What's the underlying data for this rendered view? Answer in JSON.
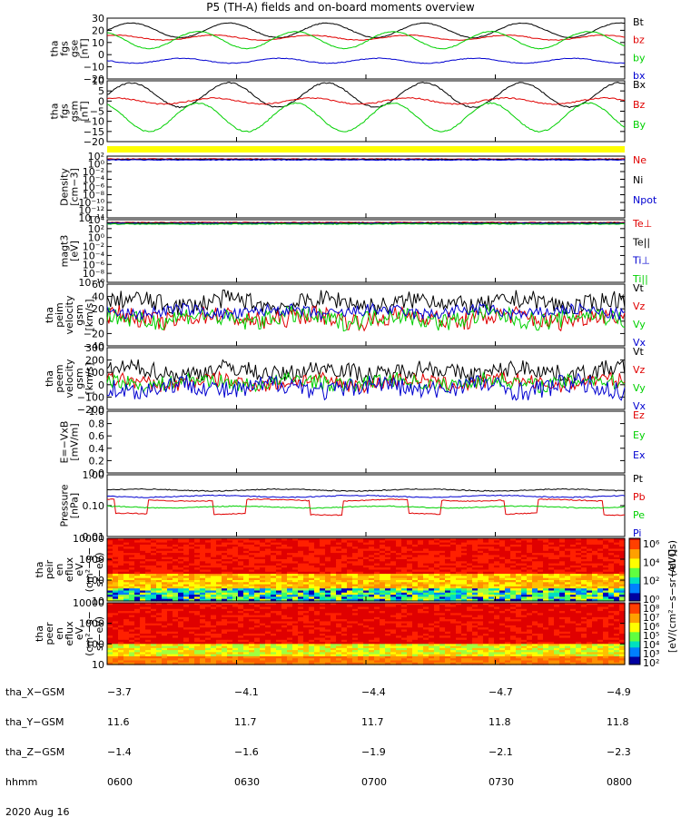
{
  "title": "P5 (TH-A) fields and on-board moments overview",
  "colors": {
    "black": "#000000",
    "red": "#e00000",
    "green": "#00d000",
    "blue": "#0000d0",
    "yellow": "#ffff00"
  },
  "chart_data": [
    {
      "type": "line",
      "panel": "fgs_gse",
      "ylabel": [
        "tha",
        "fgs",
        "gse",
        "[nT]"
      ],
      "ylim": [
        -20,
        30
      ],
      "ticks": [
        "30",
        "20",
        "10",
        "0",
        "−10",
        "−20"
      ],
      "series": [
        {
          "name": "Bt",
          "color": "black",
          "baseline": 20,
          "amp": 6
        },
        {
          "name": "bz",
          "color": "red",
          "baseline": 14,
          "amp": 2
        },
        {
          "name": "by",
          "color": "green",
          "baseline": 12,
          "amp": 7
        },
        {
          "name": "bx",
          "color": "blue",
          "baseline": -5,
          "amp": 2
        }
      ]
    },
    {
      "type": "line",
      "panel": "fgs_gsm",
      "ylabel": [
        "tha",
        "fgs",
        "gsm",
        "[nT]"
      ],
      "ylim": [
        -20,
        10
      ],
      "ticks": [
        "10",
        "5",
        "0",
        "−5",
        "−10",
        "−15",
        "−20"
      ],
      "series": [
        {
          "name": "Bx",
          "color": "black",
          "baseline": 3,
          "amp": 6
        },
        {
          "name": "Bz",
          "color": "red",
          "baseline": 0,
          "amp": 1.5
        },
        {
          "name": "By",
          "color": "green",
          "baseline": -8,
          "amp": 7
        }
      ]
    },
    {
      "type": "line",
      "panel": "density",
      "ylabel": [
        "Density",
        "[cm−3]"
      ],
      "ticks": [
        "10²",
        "10⁰",
        "10⁻²",
        "10⁻⁴",
        "10⁻⁶",
        "10⁻⁸",
        "10⁻¹⁰",
        "10⁻¹²",
        "10⁻¹⁴"
      ],
      "series": [
        {
          "name": "Ne",
          "color": "red"
        },
        {
          "name": "Ni",
          "color": "black"
        },
        {
          "name": "Npot",
          "color": "blue"
        }
      ]
    },
    {
      "type": "line",
      "panel": "temperature",
      "ylabel": [
        "magt3",
        "[eV]"
      ],
      "ticks": [
        "10⁴",
        "10²",
        "10⁰",
        "10⁻²",
        "10⁻⁴",
        "10⁻⁶",
        "10⁻⁸",
        "10⁻¹⁰"
      ],
      "series": [
        {
          "name": "Te⊥",
          "color": "red"
        },
        {
          "name": "Te||",
          "color": "black"
        },
        {
          "name": "Ti⊥",
          "color": "blue"
        },
        {
          "name": "Ti||",
          "color": "green"
        }
      ]
    },
    {
      "type": "line",
      "panel": "peim_velocity",
      "ylabel": [
        "tha",
        "peim",
        "velocity",
        "gsm",
        "[km/s]"
      ],
      "ylim": [
        -40,
        60
      ],
      "ticks": [
        "60",
        "40",
        "20",
        "0",
        "−20",
        "−40"
      ],
      "series": [
        {
          "name": "Vt",
          "color": "black",
          "baseline": 30,
          "amp": 15
        },
        {
          "name": "Vz",
          "color": "red",
          "baseline": 5,
          "amp": 15
        },
        {
          "name": "Vy",
          "color": "green",
          "baseline": 5,
          "amp": 15
        },
        {
          "name": "Vx",
          "color": "blue",
          "baseline": 15,
          "amp": 10
        }
      ]
    },
    {
      "type": "line",
      "panel": "peem_velocity",
      "ylabel": [
        "tha",
        "peem",
        "velocity",
        "gsm",
        "[km/s]"
      ],
      "ylim": [
        -200,
        300
      ],
      "ticks": [
        "300",
        "200",
        "100",
        "0",
        "−100",
        "−200"
      ],
      "series": [
        {
          "name": "Vt",
          "color": "black",
          "baseline": 110,
          "amp": 70
        },
        {
          "name": "Vz",
          "color": "red",
          "baseline": 20,
          "amp": 60
        },
        {
          "name": "Vy",
          "color": "green",
          "baseline": 20,
          "amp": 60
        },
        {
          "name": "Vx",
          "color": "blue",
          "baseline": -20,
          "amp": 80
        }
      ]
    },
    {
      "type": "line",
      "panel": "efield",
      "ylabel": [
        "E=−VxB",
        "[mV/m]"
      ],
      "ylim": [
        0,
        1
      ],
      "ticks": [
        "1.0",
        "0.8",
        "0.6",
        "0.4",
        "0.2",
        "0.0"
      ],
      "series": [
        {
          "name": "Ez",
          "color": "red"
        },
        {
          "name": "Ey",
          "color": "green"
        },
        {
          "name": "Ex",
          "color": "blue"
        }
      ]
    },
    {
      "type": "line",
      "panel": "pressure",
      "ylabel": [
        "Pressure",
        "[nPa]"
      ],
      "ylim": [
        0.01,
        1
      ],
      "yscale": "log",
      "ticks": [
        "1.00",
        "0.10",
        "0.01"
      ],
      "series": [
        {
          "name": "Pt",
          "color": "black",
          "baseline": 0.32
        },
        {
          "name": "Pb",
          "color": "red",
          "baseline": 0.15
        },
        {
          "name": "Pe",
          "color": "green",
          "baseline": 0.09
        },
        {
          "name": "Pi",
          "color": "blue",
          "baseline": 0.2
        }
      ]
    },
    {
      "type": "heatmap",
      "panel": "peir_spectrogram",
      "ylabel": [
        "tha",
        "peir",
        "en",
        "eflux",
        "eV",
        "(cm²−s−",
        "sr−eV)"
      ],
      "ylim": [
        10,
        10000
      ],
      "yscale": "log",
      "ticks": [
        "10000",
        "1000",
        "100",
        "10"
      ]
    },
    {
      "type": "heatmap",
      "panel": "peer_spectrogram",
      "ylabel": [
        "tha",
        "peer",
        "en",
        "eflux",
        "eV",
        "(cm²−s−",
        "sr−eV)"
      ],
      "ylim": [
        10,
        10000
      ],
      "yscale": "log",
      "ticks": [
        "10000",
        "1000",
        "100",
        "10"
      ]
    }
  ],
  "colorbar": {
    "label": "[eV/(cm²−s−sr−eV)]",
    "label_peir": "(All Qs)",
    "ticks_top": [
      "10⁶",
      "10⁴",
      "10²",
      "10⁰"
    ],
    "ticks_bottom": [
      "10⁸",
      "10⁷",
      "10⁶",
      "10⁵",
      "10⁴",
      "10³",
      "10²"
    ]
  },
  "footer": {
    "row_labels": [
      "tha_X−GSM",
      "tha_Y−GSM",
      "tha_Z−GSM",
      "hhmm",
      "2020 Aug 16"
    ],
    "columns": [
      {
        "X": "−3.7",
        "Y": "11.6",
        "Z": "−1.4",
        "t": "0600"
      },
      {
        "X": "−4.1",
        "Y": "11.7",
        "Z": "−1.6",
        "t": "0630"
      },
      {
        "X": "−4.4",
        "Y": "11.7",
        "Z": "−1.9",
        "t": "0700"
      },
      {
        "X": "−4.7",
        "Y": "11.8",
        "Z": "−2.1",
        "t": "0730"
      },
      {
        "X": "−4.9",
        "Y": "11.8",
        "Z": "−2.3",
        "t": "0800"
      }
    ]
  }
}
